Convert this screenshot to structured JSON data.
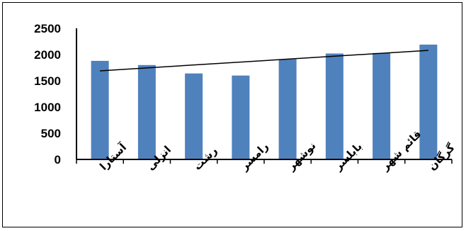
{
  "chart_data": {
    "type": "bar",
    "title": "",
    "xlabel": "",
    "ylabel": "",
    "categories": [
      "آستارا",
      "انزلی",
      "رشت",
      "رامسر",
      "نوشهر",
      "بابلسر",
      "قائم شهر",
      "گرگان"
    ],
    "values": [
      1880,
      1800,
      1640,
      1600,
      1910,
      2020,
      2030,
      2190
    ],
    "trendline": {
      "type": "linear",
      "start": 1690,
      "end": 2080
    },
    "ylim": [
      0,
      2500
    ],
    "yticks": [
      "0",
      "500",
      "1000",
      "1500",
      "2000",
      "2500"
    ],
    "grid": false,
    "legend": "none",
    "bar_color": "#4f81bd",
    "trend_color": "#000000"
  }
}
